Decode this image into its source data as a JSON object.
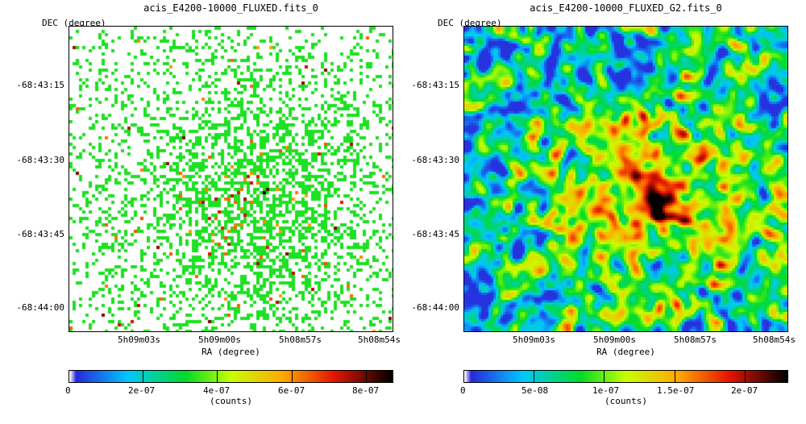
{
  "chart_data": [
    {
      "type": "heatmap",
      "title": "acis_E4200-10000_FLUXED.fits_0",
      "xlabel": "RA (degree)",
      "ylabel": "DEC (degree)",
      "x_ticks": [
        "5h09m03s",
        "5h09m00s",
        "5h08m57s",
        "5h08m54s"
      ],
      "y_ticks": [
        "-68:43:15",
        "-68:43:30",
        "-68:43:45",
        "-68:44:00"
      ],
      "colorbar": {
        "label": "(counts)",
        "ticks": [
          "0",
          "2e-07",
          "4e-07",
          "6e-07",
          "8e-07"
        ],
        "tick_values": [
          0,
          2e-07,
          4e-07,
          6e-07,
          8e-07
        ],
        "range": [
          0,
          8.7e-07
        ]
      }
    },
    {
      "type": "heatmap",
      "title": "acis_E4200-10000_FLUXED_G2.fits_0",
      "xlabel": "RA (degree)",
      "ylabel": "DEC (degree)",
      "x_ticks": [
        "5h09m03s",
        "5h09m00s",
        "5h08m57s",
        "5h08m54s"
      ],
      "y_ticks": [
        "-68:43:15",
        "-68:43:30",
        "-68:43:45",
        "-68:44:00"
      ],
      "colorbar": {
        "label": "(counts)",
        "ticks": [
          "0",
          "5e-08",
          "1e-07",
          "1.5e-07",
          "2e-07"
        ],
        "tick_values": [
          0,
          5e-08,
          1e-07,
          1.5e-07,
          2e-07
        ],
        "range": [
          0,
          2.3e-07
        ]
      }
    }
  ]
}
